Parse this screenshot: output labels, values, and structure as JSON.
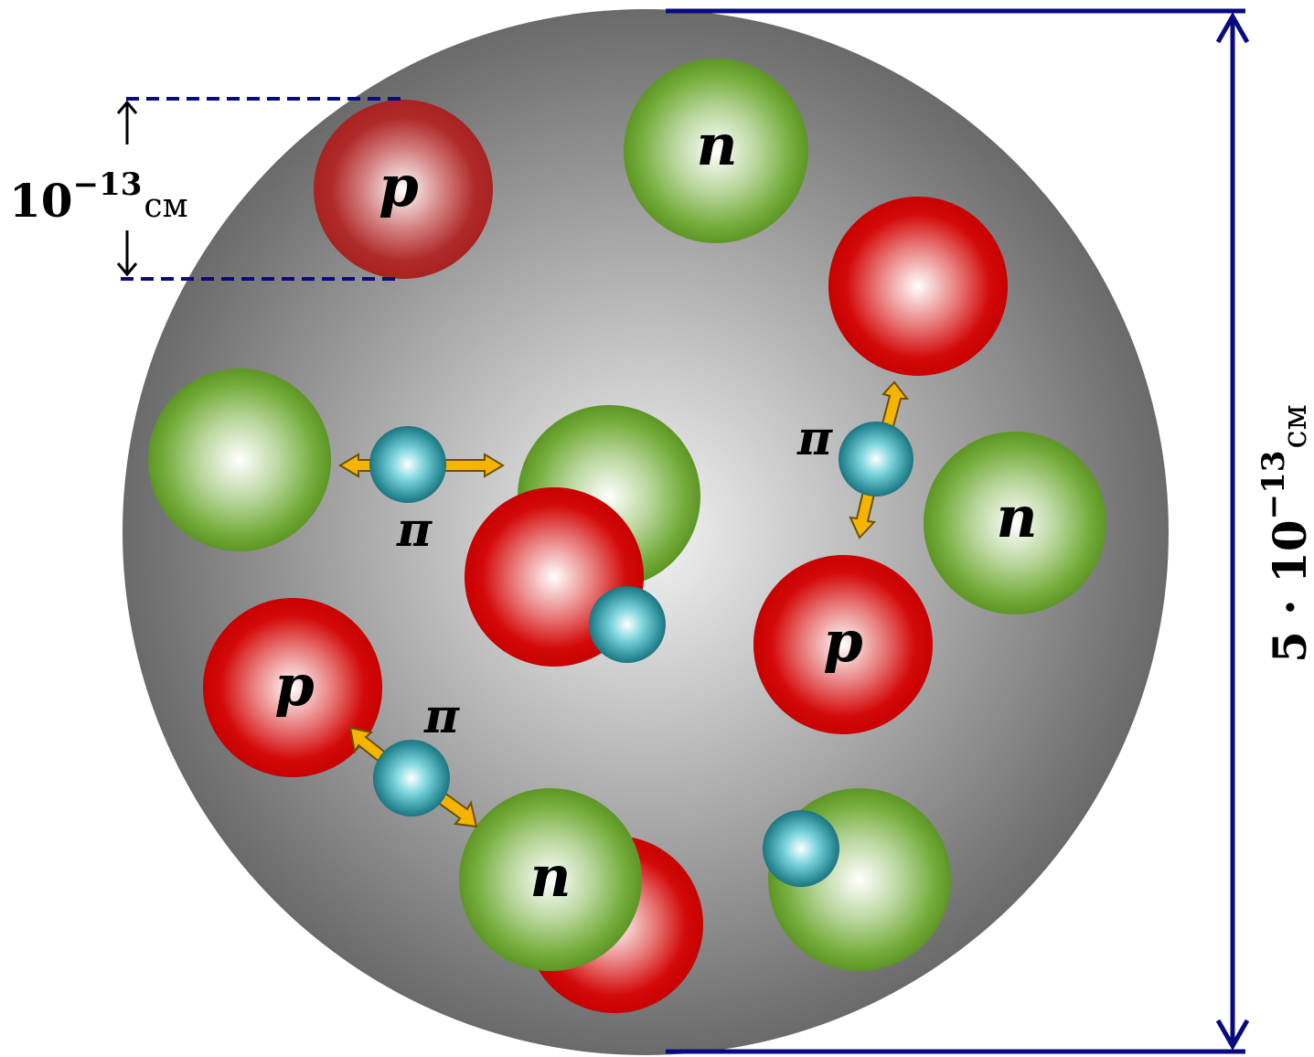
{
  "labels": {
    "proton": "p",
    "neutron": "n",
    "pion": "π"
  },
  "scale_small": {
    "base": "10",
    "exponent": "−13",
    "unit": "см"
  },
  "scale_large": {
    "prefix": "5 · 10",
    "exponent": "−13",
    "unit": "см"
  },
  "colors": {
    "proton": "#cc0000",
    "neutron": "#6aa532",
    "pion": "#2a9aa6",
    "nucleus": "#888888",
    "arrow": "#f5b400",
    "dimension_line": "#0a0a80"
  }
}
